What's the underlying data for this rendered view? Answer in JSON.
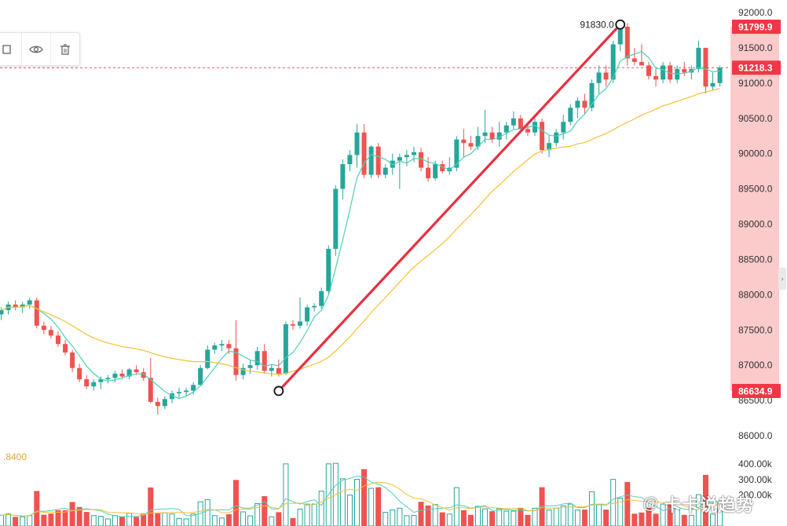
{
  "chart_data": {
    "type": "candlestick",
    "price_axis": {
      "ticks": [
        "92000.0",
        "91500.0",
        "91000.0",
        "90500.0",
        "90000.0",
        "89500.0",
        "89000.0",
        "88500.0",
        "88000.0",
        "87500.0",
        "87000.0",
        "86500.0",
        "86000.0"
      ],
      "tick_values": [
        92000,
        91500,
        91000,
        90500,
        90000,
        89500,
        89000,
        88500,
        88000,
        87500,
        87000,
        86500,
        86000
      ],
      "range": [
        85940,
        92170
      ]
    },
    "volume_axis": {
      "ticks": [
        "400.00k",
        "300.00k",
        "200.00k"
      ],
      "tick_values": [
        400000,
        300000,
        200000
      ]
    },
    "price_tags": [
      {
        "label": "91799.9",
        "value": 91799.9,
        "color": "#f23645"
      },
      {
        "label": "91218.3",
        "value": 91218.3,
        "color": "#f23645"
      },
      {
        "label": "86634.9",
        "value": 86634.9,
        "color": "#f23645"
      }
    ],
    "current_price_line": 91218.3,
    "highlight_range": [
      86634.9,
      91799.9
    ],
    "drawing": {
      "type": "trend-line",
      "start": {
        "index": 39,
        "price": 86635
      },
      "end": {
        "index": 87,
        "price": 91830
      },
      "end_label": "91830.0",
      "color": "#e8303f"
    },
    "left_indicator_label": ".8400",
    "candles": [
      [
        87720,
        87820,
        87640,
        87780
      ],
      [
        87780,
        87900,
        87720,
        87860
      ],
      [
        87860,
        87920,
        87780,
        87820
      ],
      [
        87820,
        87900,
        87740,
        87860
      ],
      [
        87860,
        87960,
        87800,
        87920
      ],
      [
        87920,
        87960,
        87520,
        87560
      ],
      [
        87560,
        87620,
        87440,
        87500
      ],
      [
        87500,
        87560,
        87380,
        87420
      ],
      [
        87420,
        87480,
        87260,
        87300
      ],
      [
        87300,
        87360,
        87140,
        87180
      ],
      [
        87180,
        87220,
        86900,
        86960
      ],
      [
        86960,
        87020,
        86760,
        86800
      ],
      [
        86800,
        86860,
        86660,
        86700
      ],
      [
        86700,
        86800,
        86640,
        86760
      ],
      [
        86760,
        86840,
        86660,
        86800
      ],
      [
        86800,
        86860,
        86740,
        86820
      ],
      [
        86820,
        86920,
        86760,
        86880
      ],
      [
        86880,
        86940,
        86800,
        86840
      ],
      [
        86840,
        86960,
        86800,
        86940
      ],
      [
        86940,
        87000,
        86860,
        86900
      ],
      [
        86900,
        86960,
        86780,
        86820
      ],
      [
        86820,
        87100,
        86460,
        86480
      ],
      [
        86480,
        86540,
        86300,
        86420
      ],
      [
        86420,
        86560,
        86380,
        86520
      ],
      [
        86520,
        86640,
        86460,
        86600
      ],
      [
        86600,
        86680,
        86540,
        86620
      ],
      [
        86620,
        86680,
        86560,
        86640
      ],
      [
        86640,
        86760,
        86580,
        86720
      ],
      [
        86720,
        87000,
        86700,
        86960
      ],
      [
        86960,
        87280,
        86940,
        87220
      ],
      [
        87220,
        87320,
        87160,
        87280
      ],
      [
        87280,
        87360,
        87200,
        87300
      ],
      [
        87300,
        87360,
        87160,
        87240
      ],
      [
        87240,
        87640,
        86780,
        86860
      ],
      [
        86860,
        87020,
        86800,
        86960
      ],
      [
        86960,
        87080,
        86880,
        87000
      ],
      [
        87000,
        87260,
        86940,
        87200
      ],
      [
        87200,
        87300,
        86880,
        86920
      ],
      [
        86920,
        87000,
        86840,
        86960
      ],
      [
        86960,
        87080,
        86840,
        86880
      ],
      [
        86880,
        87620,
        86860,
        87580
      ],
      [
        87580,
        87640,
        87500,
        87560
      ],
      [
        87560,
        87960,
        87520,
        87620
      ],
      [
        87620,
        87860,
        87560,
        87820
      ],
      [
        87820,
        87880,
        87760,
        87840
      ],
      [
        87840,
        88100,
        87800,
        88050
      ],
      [
        88050,
        88700,
        88000,
        88650
      ],
      [
        88650,
        89550,
        88550,
        89500
      ],
      [
        89500,
        89920,
        89350,
        89850
      ],
      [
        89850,
        90050,
        89750,
        89980
      ],
      [
        89980,
        90420,
        89800,
        90300
      ],
      [
        90300,
        90420,
        89650,
        89700
      ],
      [
        89700,
        90120,
        89650,
        90100
      ],
      [
        90100,
        90150,
        89650,
        89700
      ],
      [
        89700,
        89850,
        89650,
        89800
      ],
      [
        89800,
        90000,
        89700,
        89900
      ],
      [
        89900,
        90000,
        89500,
        89950
      ],
      [
        89950,
        90050,
        89820,
        89980
      ],
      [
        89980,
        90100,
        89880,
        90020
      ],
      [
        90020,
        90080,
        89750,
        89800
      ],
      [
        89800,
        89950,
        89600,
        89650
      ],
      [
        89650,
        89900,
        89620,
        89850
      ],
      [
        89850,
        89900,
        89720,
        89750
      ],
      [
        89750,
        89950,
        89700,
        89800
      ],
      [
        89800,
        90250,
        89750,
        90200
      ],
      [
        90200,
        90350,
        89950,
        90150
      ],
      [
        90150,
        90250,
        90050,
        90100
      ],
      [
        90100,
        90380,
        90050,
        90250
      ],
      [
        90250,
        90620,
        90150,
        90300
      ],
      [
        90300,
        90380,
        90150,
        90200
      ],
      [
        90200,
        90450,
        90100,
        90300
      ],
      [
        90300,
        90450,
        90200,
        90400
      ],
      [
        90400,
        90600,
        90350,
        90500
      ],
      [
        90500,
        90550,
        90300,
        90350
      ],
      [
        90350,
        90450,
        90250,
        90300
      ],
      [
        90300,
        90500,
        90250,
        90450
      ],
      [
        90450,
        90500,
        90000,
        90050
      ],
      [
        90050,
        90250,
        89950,
        90150
      ],
      [
        90150,
        90350,
        90100,
        90300
      ],
      [
        90300,
        90550,
        90200,
        90450
      ],
      [
        90450,
        90700,
        90400,
        90650
      ],
      [
        90650,
        90800,
        90500,
        90750
      ],
      [
        90750,
        90850,
        90550,
        90650
      ],
      [
        90650,
        91050,
        90600,
        91000
      ],
      [
        91000,
        91250,
        90850,
        91150
      ],
      [
        91150,
        91250,
        90950,
        91050
      ],
      [
        91050,
        91600,
        91000,
        91550
      ],
      [
        91550,
        91880,
        91450,
        91800
      ],
      [
        91800,
        91850,
        91250,
        91350
      ],
      [
        91350,
        91500,
        91250,
        91300
      ],
      [
        91300,
        91550,
        91250,
        91250
      ],
      [
        91250,
        91300,
        91050,
        91100
      ],
      [
        91100,
        91200,
        90950,
        91050
      ],
      [
        91050,
        91300,
        91000,
        91250
      ],
      [
        91250,
        91300,
        91000,
        91050
      ],
      [
        91050,
        91250,
        91000,
        91200
      ],
      [
        91200,
        91300,
        91100,
        91150
      ],
      [
        91150,
        91250,
        91050,
        91200
      ],
      [
        91200,
        91600,
        91150,
        91500
      ],
      [
        91500,
        91500,
        90850,
        90950
      ],
      [
        90950,
        91150,
        90900,
        91000
      ],
      [
        91000,
        91250,
        90950,
        91218
      ]
    ],
    "volume_bar_count": 28
  },
  "toolbar": {
    "buttons": [
      {
        "name": "duplicate-icon"
      },
      {
        "name": "eye-icon"
      },
      {
        "name": "trash-icon"
      }
    ]
  },
  "watermark": {
    "at": "@",
    "text": "卡卡说趋势"
  },
  "colors": {
    "up": "#26a69a",
    "down": "#ef5350",
    "ma_fast": "#4dd0b8",
    "ma_slow": "#f4c035",
    "trend": "#e8303f",
    "axis_text": "#333333",
    "highlight": "#fbcaca"
  }
}
